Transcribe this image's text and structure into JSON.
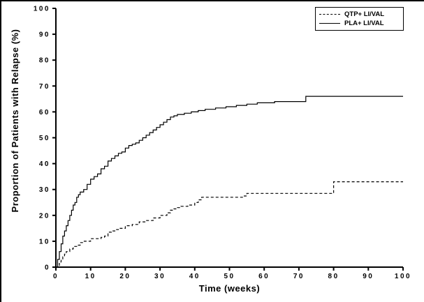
{
  "chart_data": {
    "type": "line",
    "subtype": "kaplan-meier-step",
    "title": "",
    "xlabel": "Time (weeks)",
    "ylabel": "Proportion of Patients with Relapse (%)",
    "xlim": [
      0,
      100
    ],
    "ylim": [
      0,
      100
    ],
    "x_ticks": [
      0,
      10,
      20,
      30,
      40,
      50,
      60,
      70,
      80,
      90,
      100
    ],
    "y_ticks": [
      0,
      10,
      20,
      30,
      40,
      50,
      60,
      70,
      80,
      90,
      100
    ],
    "grid": false,
    "legend_position": "top-right-inside",
    "line_color": "#000000",
    "series": [
      {
        "name": "QTP+ LI/VAL",
        "style": "dashed",
        "points": [
          [
            0,
            0
          ],
          [
            1,
            2
          ],
          [
            1.5,
            3
          ],
          [
            2,
            4
          ],
          [
            2.5,
            5
          ],
          [
            3,
            6
          ],
          [
            4,
            7
          ],
          [
            5,
            8
          ],
          [
            6,
            8.5
          ],
          [
            7,
            9.5
          ],
          [
            8,
            10
          ],
          [
            10,
            11
          ],
          [
            12,
            11
          ],
          [
            13,
            11.5
          ],
          [
            14,
            12
          ],
          [
            15,
            13.5
          ],
          [
            16,
            14
          ],
          [
            17,
            14.5
          ],
          [
            18,
            15
          ],
          [
            20,
            16
          ],
          [
            22,
            16.5
          ],
          [
            24,
            17.5
          ],
          [
            26,
            18
          ],
          [
            28,
            19
          ],
          [
            30,
            20
          ],
          [
            32,
            21
          ],
          [
            33,
            22
          ],
          [
            34,
            22.5
          ],
          [
            35,
            23
          ],
          [
            36,
            23.5
          ],
          [
            38,
            24
          ],
          [
            40,
            25
          ],
          [
            41,
            26
          ],
          [
            42,
            27
          ],
          [
            54,
            27.5
          ],
          [
            55,
            28.5
          ],
          [
            80,
            33
          ],
          [
            100,
            33
          ]
        ]
      },
      {
        "name": "PLA+ LI/VAL",
        "style": "solid",
        "points": [
          [
            0,
            0
          ],
          [
            0.5,
            3
          ],
          [
            1,
            6
          ],
          [
            1.5,
            9
          ],
          [
            2,
            12
          ],
          [
            2.5,
            14
          ],
          [
            3,
            16
          ],
          [
            3.5,
            18
          ],
          [
            4,
            20
          ],
          [
            4.5,
            22
          ],
          [
            5,
            24
          ],
          [
            5.5,
            25
          ],
          [
            6,
            27
          ],
          [
            6.5,
            28
          ],
          [
            7,
            29
          ],
          [
            8,
            30
          ],
          [
            9,
            32
          ],
          [
            10,
            34
          ],
          [
            11,
            35
          ],
          [
            12,
            36
          ],
          [
            13,
            38
          ],
          [
            14,
            39
          ],
          [
            15,
            41
          ],
          [
            16,
            42
          ],
          [
            17,
            43
          ],
          [
            18,
            44
          ],
          [
            19,
            44.5
          ],
          [
            20,
            46
          ],
          [
            21,
            47
          ],
          [
            22,
            47.5
          ],
          [
            23,
            48
          ],
          [
            24,
            49
          ],
          [
            25,
            50
          ],
          [
            26,
            51
          ],
          [
            27,
            52
          ],
          [
            28,
            53
          ],
          [
            29,
            54
          ],
          [
            30,
            55
          ],
          [
            31,
            56
          ],
          [
            32,
            57
          ],
          [
            33,
            58
          ],
          [
            34,
            58.5
          ],
          [
            35,
            59
          ],
          [
            37,
            59.5
          ],
          [
            39,
            60
          ],
          [
            41,
            60.5
          ],
          [
            43,
            61
          ],
          [
            46,
            61.5
          ],
          [
            49,
            62
          ],
          [
            52,
            62.5
          ],
          [
            55,
            63
          ],
          [
            58,
            63.5
          ],
          [
            63,
            64
          ],
          [
            72,
            66
          ],
          [
            100,
            66
          ]
        ]
      }
    ]
  }
}
